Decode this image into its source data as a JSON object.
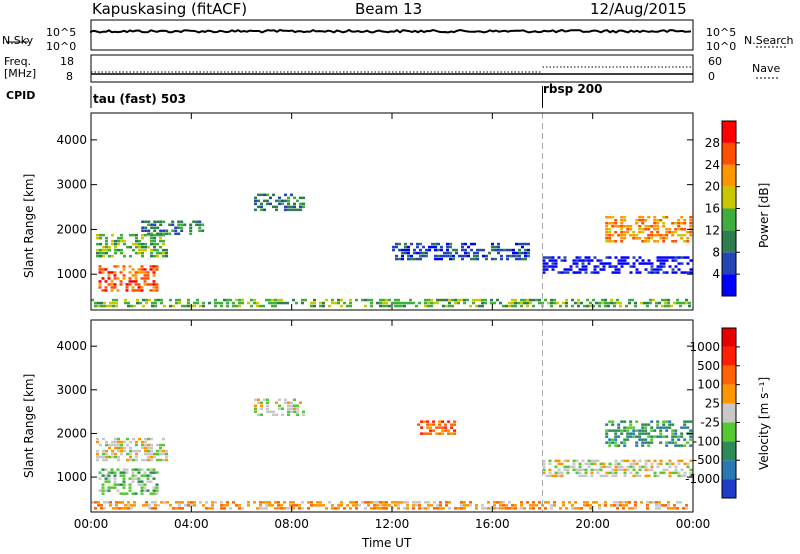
{
  "header": {
    "station": "Kapuskasing (fitACF)",
    "beam": "Beam 13",
    "date": "12/Aug/2015"
  },
  "params": {
    "nsky_label": "N.Sky",
    "nsky_ticks": [
      "10^5",
      "10^0"
    ],
    "nsearch_label": "N.Search",
    "freq_label_1": "Freq.",
    "freq_label_2": "[MHz]",
    "freq_ticks": [
      "18",
      "8"
    ],
    "nave_label": "Nave",
    "nave_ticks": [
      "60",
      "0"
    ],
    "cpid_label": "CPID",
    "cpid_1": "tau (fast) 503",
    "cpid_2": "rbsp 200"
  },
  "chart_data": [
    {
      "type": "heatmap",
      "title": "",
      "xlabel": "Time UT",
      "ylabel": "Slant Range [km]",
      "xlim": [
        0,
        24
      ],
      "ylim": [
        200,
        4600
      ],
      "x_ticks": [
        "00:00",
        "04:00",
        "08:00",
        "12:00",
        "16:00",
        "20:00",
        "00:00"
      ],
      "y_ticks": [
        "1000",
        "2000",
        "3000",
        "4000"
      ],
      "colorbar": {
        "label": "Power [dB]",
        "ticks": [
          "4",
          "8",
          "12",
          "16",
          "20",
          "24",
          "28"
        ],
        "colors": [
          "#0000ff",
          "#2446b4",
          "#2e7d4e",
          "#3fae3f",
          "#c8c800",
          "#ff9600",
          "#ff5000",
          "#ff0000"
        ]
      },
      "regions": [
        {
          "t0": 0.3,
          "t1": 2.6,
          "r0": 600,
          "r1": 1200,
          "level": 6
        },
        {
          "t0": 0.2,
          "t1": 3.0,
          "r0": 1400,
          "r1": 1900,
          "level": 3
        },
        {
          "t0": 2.0,
          "t1": 4.5,
          "r0": 1900,
          "r1": 2200,
          "level": 2
        },
        {
          "t0": 6.5,
          "t1": 8.5,
          "r0": 2400,
          "r1": 2800,
          "level": 2
        },
        {
          "t0": 12.0,
          "t1": 17.5,
          "r0": 1300,
          "r1": 1700,
          "level": 1
        },
        {
          "t0": 18.0,
          "t1": 23.9,
          "r0": 1000,
          "r1": 1400,
          "level": 0
        },
        {
          "t0": 20.5,
          "t1": 23.9,
          "r0": 1700,
          "r1": 2300,
          "level": 5
        },
        {
          "t0": 0.0,
          "t1": 23.9,
          "r0": 250,
          "r1": 450,
          "level": 3
        }
      ]
    },
    {
      "type": "heatmap",
      "title": "",
      "xlabel": "Time UT",
      "ylabel": "Slant Range [km]",
      "xlim": [
        0,
        24
      ],
      "ylim": [
        200,
        4600
      ],
      "x_ticks": [
        "00:00",
        "04:00",
        "08:00",
        "12:00",
        "16:00",
        "20:00",
        "00:00"
      ],
      "y_ticks": [
        "1000",
        "2000",
        "3000",
        "4000"
      ],
      "colorbar": {
        "label": "Velocity [m s⁻¹]",
        "ticks": [
          "1000",
          "500",
          "100",
          "25",
          "-25",
          "-100",
          "-500",
          "-1000"
        ],
        "colors": [
          "#1e3cc8",
          "#2878b4",
          "#2e8b57",
          "#55c832",
          "#c8c8c8",
          "#ff9600",
          "#ff6400",
          "#ff1e00",
          "#e60000"
        ]
      },
      "regions": [
        {
          "t0": 0.3,
          "t1": 2.6,
          "r0": 600,
          "r1": 1200,
          "level": 3
        },
        {
          "t0": 0.2,
          "t1": 3.0,
          "r0": 1400,
          "r1": 1900,
          "level": 4
        },
        {
          "t0": 6.5,
          "t1": 8.5,
          "r0": 2400,
          "r1": 2800,
          "level": 4
        },
        {
          "t0": 13.0,
          "t1": 14.5,
          "r0": 2000,
          "r1": 2300,
          "level": 6
        },
        {
          "t0": 18.0,
          "t1": 23.9,
          "r0": 1000,
          "r1": 1400,
          "level": 4
        },
        {
          "t0": 20.5,
          "t1": 23.9,
          "r0": 1700,
          "r1": 2300,
          "level": 2
        },
        {
          "t0": 0.0,
          "t1": 23.9,
          "r0": 250,
          "r1": 450,
          "level": 5
        }
      ]
    }
  ],
  "mode_change_hour": 18.0
}
